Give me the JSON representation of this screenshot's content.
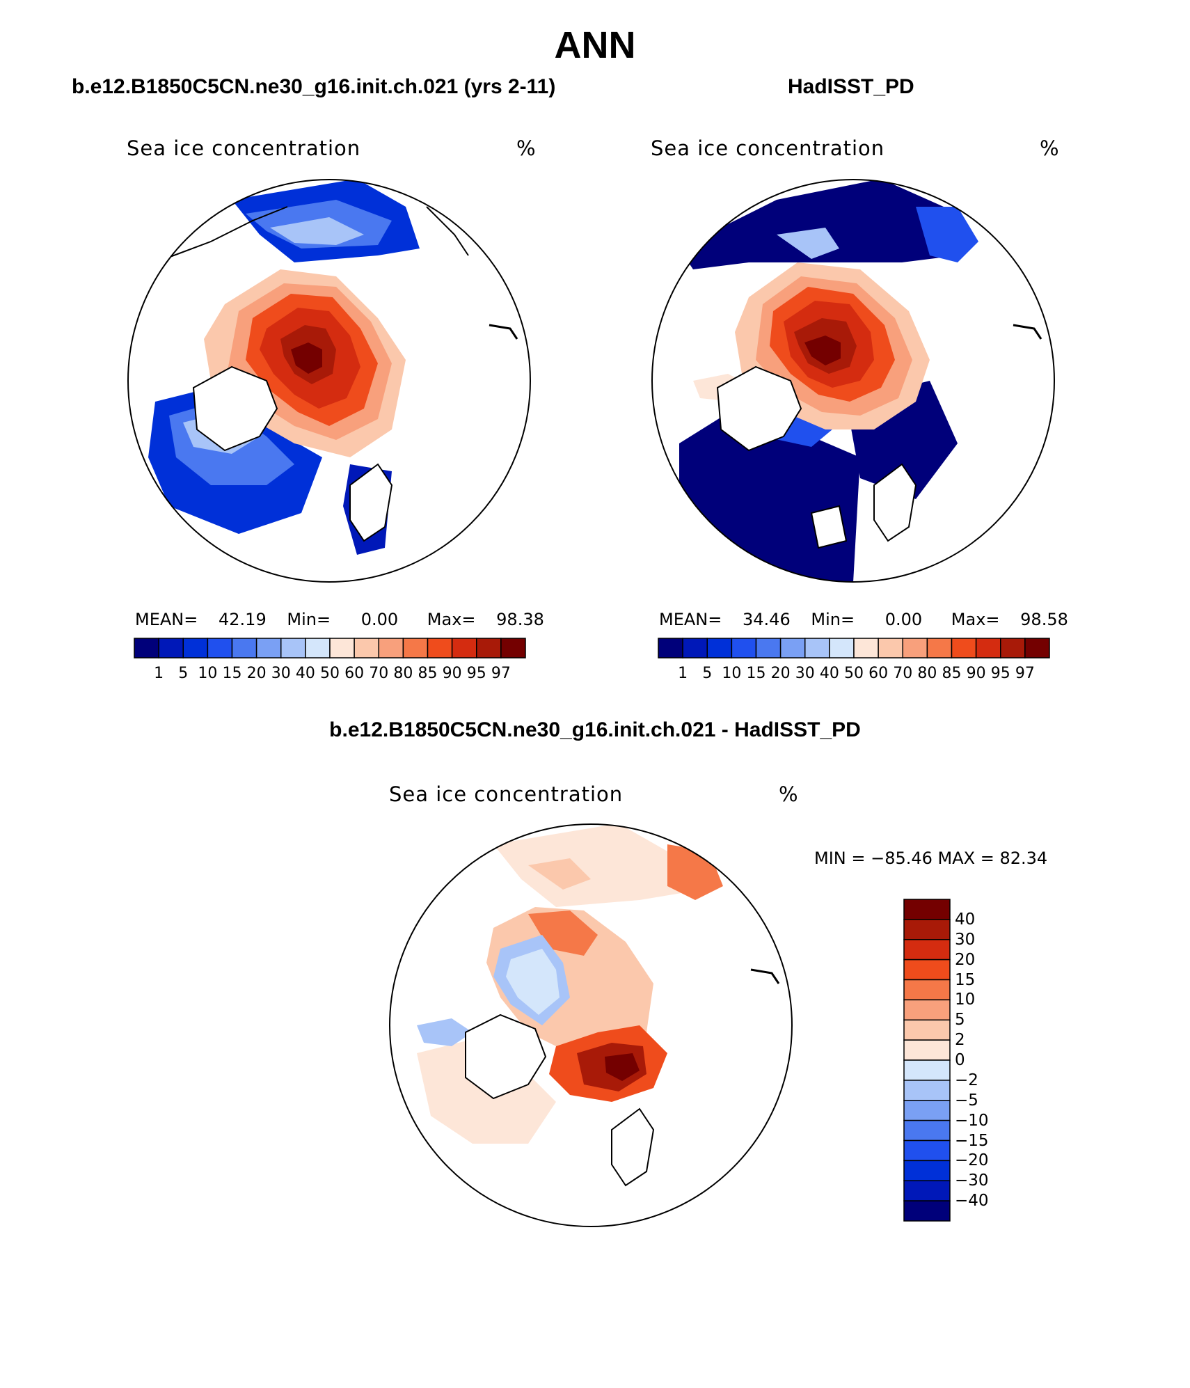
{
  "title": "ANN",
  "panels": [
    {
      "case_title": "b.e12.B1850C5CN.ne30_g16.init.ch.021 (yrs 2-11)",
      "field": "Sea ice concentration",
      "unit": "%",
      "mean_label": "MEAN=",
      "mean": "42.19",
      "min_label": "Min=",
      "min": "0.00",
      "max_label": "Max=",
      "max": "98.38"
    },
    {
      "case_title": "HadISST_PD",
      "field": "Sea ice concentration",
      "unit": "%",
      "mean_label": "MEAN=",
      "mean": "34.46",
      "min_label": "Min=",
      "min": "0.00",
      "max_label": "Max=",
      "max": "98.58"
    }
  ],
  "diff": {
    "title": "b.e12.B1850C5CN.ne30_g16.init.ch.021 - HadISST_PD",
    "field": "Sea ice concentration",
    "unit": "%",
    "minmax": "MIN = −85.46 MAX =   82.34"
  },
  "colorbar_abs": {
    "levels": [
      "1",
      "5",
      "10",
      "15",
      "20",
      "30",
      "40",
      "50",
      "60",
      "70",
      "80",
      "85",
      "90",
      "95",
      "97"
    ],
    "colors": [
      "#00007a",
      "#0018b8",
      "#0030d8",
      "#2050ee",
      "#4a78f0",
      "#7aa0f4",
      "#a8c4f8",
      "#d4e6fb",
      "#fde6d8",
      "#fbc8ac",
      "#f8a07c",
      "#f57848",
      "#ef4c1c",
      "#d42c10",
      "#a81a08",
      "#740000"
    ]
  },
  "colorbar_diff": {
    "levels": [
      "40",
      "30",
      "20",
      "15",
      "10",
      "5",
      "2",
      "0",
      "−2",
      "−5",
      "−10",
      "−15",
      "−20",
      "−30",
      "−40"
    ],
    "colors": [
      "#740000",
      "#a81a08",
      "#d42c10",
      "#ef4c1c",
      "#f57848",
      "#f8a07c",
      "#fbc8ac",
      "#fde6d8",
      "#d4e6fb",
      "#a8c4f8",
      "#7aa0f4",
      "#4a78f0",
      "#2050ee",
      "#0030d8",
      "#0018b8",
      "#00007a"
    ]
  }
}
